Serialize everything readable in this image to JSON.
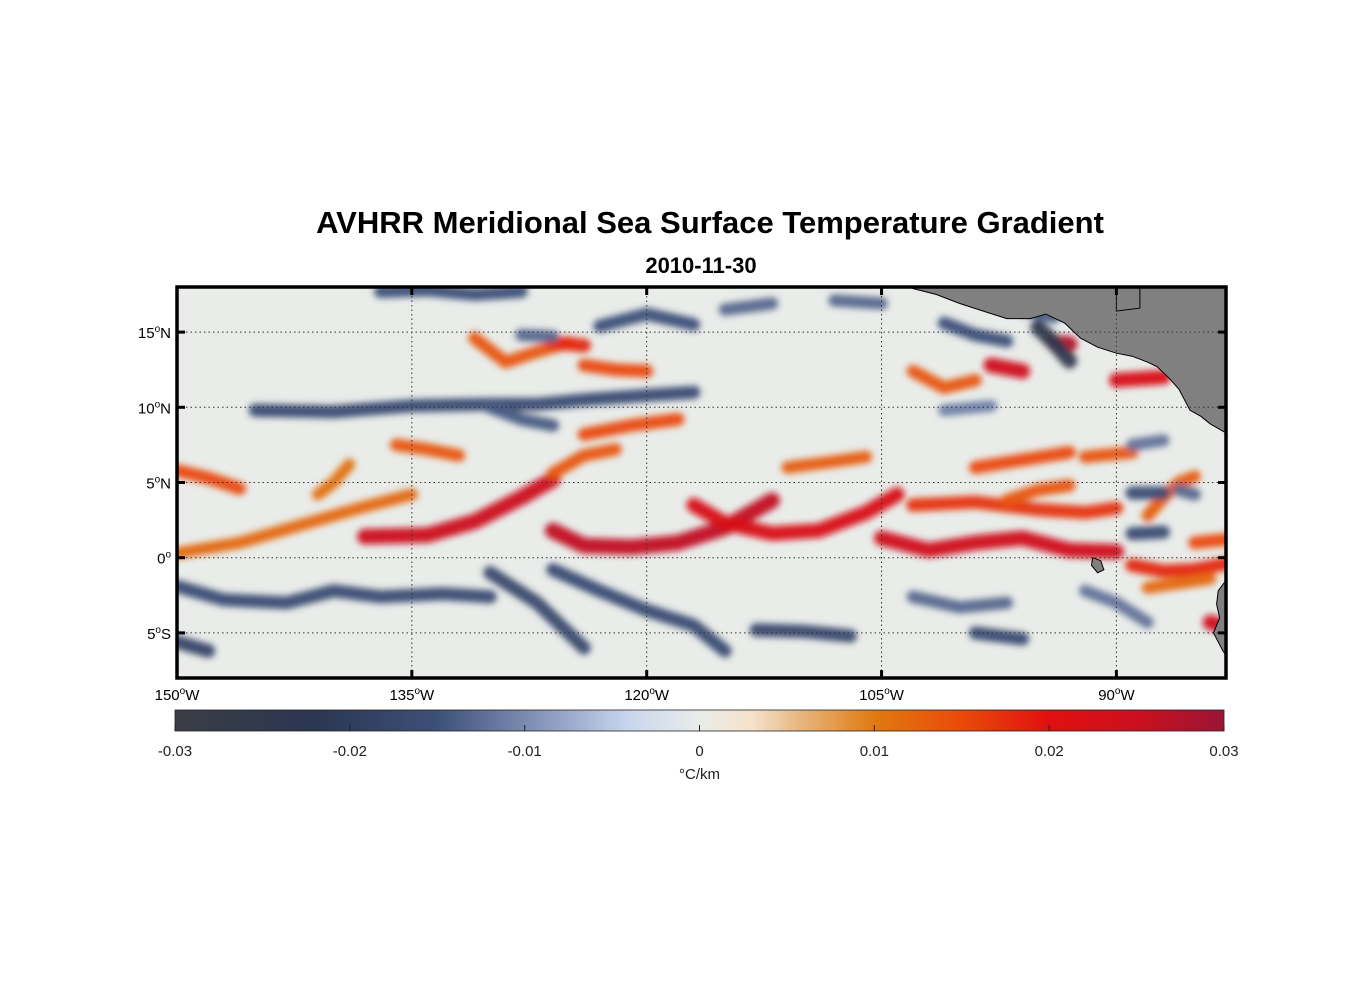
{
  "figure": {
    "title": "AVHRR Meridional Sea Surface Temperature Gradient",
    "subtitle": "2010-11-30"
  },
  "map": {
    "type": "heatmap",
    "lon_range": [
      -150,
      -83
    ],
    "lat_range": [
      -8,
      18
    ],
    "lat_ticks": [
      {
        "value": 15,
        "deg": "15",
        "hemi": "N"
      },
      {
        "value": 10,
        "deg": "10",
        "hemi": "N"
      },
      {
        "value": 5,
        "deg": "5",
        "hemi": "N"
      },
      {
        "value": 0,
        "deg": "0",
        "hemi": ""
      },
      {
        "value": -5,
        "deg": "5",
        "hemi": "S"
      }
    ],
    "lon_ticks": [
      {
        "value": -150,
        "deg": "150",
        "hemi": "W"
      },
      {
        "value": -135,
        "deg": "135",
        "hemi": "W"
      },
      {
        "value": -120,
        "deg": "120",
        "hemi": "W"
      },
      {
        "value": -105,
        "deg": "105",
        "hemi": "W"
      },
      {
        "value": -90,
        "deg": "90",
        "hemi": "W"
      }
    ],
    "grid": "dotted",
    "land_color": "#808080",
    "background_color": "#e9ece9"
  },
  "chart_data": {
    "type": "heatmap",
    "title": "AVHRR Meridional Sea Surface Temperature Gradient",
    "subtitle": "2010-11-30",
    "xlabel": "",
    "ylabel": "",
    "xlim": [
      -150,
      -83
    ],
    "ylim": [
      -8,
      18
    ],
    "value_range": [
      -0.03,
      0.03
    ],
    "features": [
      {
        "value": 0.015,
        "path": [
          [
            -150,
            5.8
          ],
          [
            -148,
            5.3
          ],
          [
            -146,
            4.6
          ]
        ]
      },
      {
        "value": 0.012,
        "path": [
          [
            -150,
            0.3
          ],
          [
            -146,
            1.0
          ],
          [
            -142,
            2.2
          ],
          [
            -138,
            3.4
          ],
          [
            -135,
            4.2
          ]
        ]
      },
      {
        "value": 0.011,
        "path": [
          [
            -141,
            4.2
          ],
          [
            -140,
            5.0
          ],
          [
            -139,
            6.2
          ]
        ]
      },
      {
        "value": 0.014,
        "path": [
          [
            -136,
            7.5
          ],
          [
            -134,
            7.2
          ],
          [
            -132,
            6.8
          ]
        ]
      },
      {
        "value": 0.025,
        "path": [
          [
            -138,
            1.4
          ],
          [
            -134,
            1.5
          ],
          [
            -131,
            2.4
          ],
          [
            -128,
            4.0
          ],
          [
            -126,
            5.2
          ]
        ]
      },
      {
        "value": 0.026,
        "path": [
          [
            -126,
            1.8
          ],
          [
            -124,
            0.8
          ],
          [
            -121,
            0.7
          ],
          [
            -118,
            1.0
          ],
          [
            -115,
            2.0
          ],
          [
            -112,
            3.8
          ]
        ]
      },
      {
        "value": 0.014,
        "path": [
          [
            -126,
            5.6
          ],
          [
            -124,
            6.8
          ],
          [
            -122,
            7.2
          ]
        ]
      },
      {
        "value": 0.015,
        "path": [
          [
            -124,
            8.2
          ],
          [
            -121,
            8.8
          ],
          [
            -118,
            9.2
          ]
        ]
      },
      {
        "value": 0.022,
        "path": [
          [
            -117,
            3.5
          ],
          [
            -115,
            2.3
          ],
          [
            -112,
            1.6
          ],
          [
            -109,
            1.8
          ],
          [
            -106,
            3.0
          ],
          [
            -104,
            4.2
          ]
        ]
      },
      {
        "value": 0.013,
        "path": [
          [
            -111,
            6.0
          ],
          [
            -108,
            6.4
          ],
          [
            -106,
            6.7
          ]
        ]
      },
      {
        "value": 0.024,
        "path": [
          [
            -105,
            1.3
          ],
          [
            -102,
            0.5
          ],
          [
            -99,
            1.0
          ],
          [
            -96,
            1.3
          ],
          [
            -93,
            0.5
          ],
          [
            -90,
            0.4
          ]
        ]
      },
      {
        "value": 0.017,
        "path": [
          [
            -103,
            3.5
          ],
          [
            -99,
            3.7
          ],
          [
            -95,
            3.2
          ],
          [
            -92,
            3.0
          ],
          [
            -90,
            3.3
          ]
        ]
      },
      {
        "value": 0.015,
        "path": [
          [
            -99,
            6.0
          ],
          [
            -96,
            6.5
          ],
          [
            -93,
            7.0
          ]
        ]
      },
      {
        "value": 0.014,
        "path": [
          [
            -131,
            14.6
          ],
          [
            -129,
            13.0
          ],
          [
            -127,
            13.7
          ],
          [
            -125,
            14.3
          ]
        ]
      },
      {
        "value": 0.018,
        "path": [
          [
            -126,
            14.3
          ],
          [
            -124,
            14.1
          ]
        ]
      },
      {
        "value": 0.015,
        "path": [
          [
            -124,
            12.8
          ],
          [
            -122,
            12.5
          ],
          [
            -120,
            12.4
          ]
        ]
      },
      {
        "value": 0.014,
        "path": [
          [
            -103,
            12.4
          ],
          [
            -101,
            11.3
          ],
          [
            -99,
            11.8
          ]
        ]
      },
      {
        "value": 0.024,
        "path": [
          [
            -98,
            12.8
          ],
          [
            -96,
            12.4
          ]
        ]
      },
      {
        "value": 0.027,
        "path": [
          [
            -94,
            14.3
          ],
          [
            -93,
            14.2
          ]
        ]
      },
      {
        "value": 0.029,
        "path": [
          [
            -92,
            15.8
          ],
          [
            -91,
            15.7
          ]
        ]
      },
      {
        "value": 0.022,
        "path": [
          [
            -90,
            11.8
          ],
          [
            -87,
            12.0
          ]
        ]
      },
      {
        "value": 0.014,
        "path": [
          [
            -92,
            6.7
          ],
          [
            -89,
            7.0
          ]
        ]
      },
      {
        "value": 0.018,
        "path": [
          [
            -89,
            -0.5
          ],
          [
            -87,
            -0.9
          ],
          [
            -85,
            -0.8
          ],
          [
            -83,
            -0.4
          ]
        ]
      },
      {
        "value": 0.012,
        "path": [
          [
            -88,
            -2.0
          ],
          [
            -86,
            -1.7
          ],
          [
            -84,
            -1.4
          ]
        ]
      },
      {
        "value": 0.015,
        "path": [
          [
            -85,
            1.0
          ],
          [
            -83,
            1.2
          ]
        ]
      },
      {
        "value": 0.024,
        "path": [
          [
            -84,
            -4.3
          ],
          [
            -83,
            -4.6
          ]
        ]
      },
      {
        "value": 0.013,
        "path": [
          [
            -88,
            2.8
          ],
          [
            -87,
            4.0
          ],
          [
            -86,
            5.0
          ],
          [
            -85,
            5.4
          ]
        ]
      },
      {
        "value": 0.014,
        "path": [
          [
            -97,
            3.8
          ],
          [
            -95,
            4.5
          ],
          [
            -93,
            4.8
          ]
        ]
      },
      {
        "value": -0.016,
        "path": [
          [
            -150,
            -1.9
          ],
          [
            -147,
            -2.8
          ],
          [
            -143,
            -3.0
          ],
          [
            -140,
            -2.2
          ],
          [
            -137,
            -2.6
          ],
          [
            -133,
            -2.4
          ],
          [
            -130,
            -2.6
          ]
        ]
      },
      {
        "value": -0.018,
        "path": [
          [
            -150,
            -5.6
          ],
          [
            -148,
            -6.2
          ]
        ]
      },
      {
        "value": -0.016,
        "path": [
          [
            -126,
            -0.8
          ],
          [
            -123,
            -2.2
          ],
          [
            -120,
            -3.5
          ],
          [
            -117,
            -4.5
          ],
          [
            -115,
            -6.2
          ]
        ]
      },
      {
        "value": -0.017,
        "path": [
          [
            -130,
            -1.0
          ],
          [
            -127,
            -3.0
          ],
          [
            -125,
            -5.0
          ],
          [
            -124,
            -6.0
          ]
        ]
      },
      {
        "value": -0.017,
        "path": [
          [
            -113,
            -4.8
          ],
          [
            -110,
            -4.9
          ],
          [
            -107,
            -5.2
          ]
        ]
      },
      {
        "value": -0.013,
        "path": [
          [
            -103,
            -2.6
          ],
          [
            -100,
            -3.3
          ],
          [
            -97,
            -3.0
          ]
        ]
      },
      {
        "value": -0.016,
        "path": [
          [
            -99,
            -5.0
          ],
          [
            -96,
            -5.4
          ]
        ]
      },
      {
        "value": -0.012,
        "path": [
          [
            -92,
            -2.2
          ],
          [
            -90,
            -3.0
          ],
          [
            -88,
            -4.3
          ]
        ]
      },
      {
        "value": -0.016,
        "path": [
          [
            -145,
            9.8
          ],
          [
            -140,
            9.7
          ],
          [
            -135,
            10.1
          ],
          [
            -130,
            10.2
          ],
          [
            -127,
            10.2
          ],
          [
            -124,
            10.5
          ],
          [
            -120,
            10.8
          ],
          [
            -117,
            11.0
          ]
        ]
      },
      {
        "value": -0.014,
        "path": [
          [
            -130,
            10.0
          ],
          [
            -128,
            9.2
          ],
          [
            -126,
            8.8
          ]
        ]
      },
      {
        "value": -0.015,
        "path": [
          [
            -137,
            17.7
          ],
          [
            -134,
            17.8
          ],
          [
            -131,
            17.5
          ],
          [
            -128,
            17.7
          ]
        ]
      },
      {
        "value": -0.013,
        "path": [
          [
            -128,
            14.8
          ],
          [
            -126,
            14.7
          ]
        ]
      },
      {
        "value": -0.015,
        "path": [
          [
            -123,
            15.4
          ],
          [
            -120,
            16.2
          ],
          [
            -117,
            15.5
          ]
        ]
      },
      {
        "value": -0.013,
        "path": [
          [
            -115,
            16.5
          ],
          [
            -112,
            16.9
          ]
        ]
      },
      {
        "value": -0.013,
        "path": [
          [
            -108,
            17.1
          ],
          [
            -105,
            16.9
          ]
        ]
      },
      {
        "value": -0.015,
        "path": [
          [
            -101,
            15.6
          ],
          [
            -99,
            14.8
          ],
          [
            -97,
            14.4
          ]
        ]
      },
      {
        "value": -0.025,
        "path": [
          [
            -95,
            15.3
          ],
          [
            -94,
            14.3
          ],
          [
            -93,
            13.1
          ]
        ]
      },
      {
        "value": -0.014,
        "path": [
          [
            -96,
            16.5
          ],
          [
            -94,
            16.0
          ]
        ]
      },
      {
        "value": -0.016,
        "path": [
          [
            -89,
            4.3
          ],
          [
            -87,
            4.3
          ]
        ]
      },
      {
        "value": -0.016,
        "path": [
          [
            -89,
            1.6
          ],
          [
            -87,
            1.7
          ]
        ]
      },
      {
        "value": -0.013,
        "path": [
          [
            -86,
            4.5
          ],
          [
            -85,
            4.2
          ]
        ]
      },
      {
        "value": -0.012,
        "path": [
          [
            -89,
            7.5
          ],
          [
            -87,
            7.8
          ]
        ]
      },
      {
        "value": -0.011,
        "path": [
          [
            -101,
            9.8
          ],
          [
            -98,
            10.1
          ]
        ]
      }
    ]
  },
  "colorbar": {
    "label": "°C/km",
    "ticks": [
      "-0.03",
      "-0.02",
      "-0.01",
      "0",
      "0.01",
      "0.02",
      "0.03"
    ],
    "range": [
      -0.03,
      0.03
    ],
    "stops": [
      {
        "v": -0.03,
        "c": "#3a3d44"
      },
      {
        "v": -0.022,
        "c": "#2b3652"
      },
      {
        "v": -0.015,
        "c": "#3d5078"
      },
      {
        "v": -0.009,
        "c": "#8796bb"
      },
      {
        "v": -0.004,
        "c": "#c9d7ef"
      },
      {
        "v": 0.0,
        "c": "#e9ece9"
      },
      {
        "v": 0.003,
        "c": "#f6e2cc"
      },
      {
        "v": 0.006,
        "c": "#e6b37a"
      },
      {
        "v": 0.01,
        "c": "#e07a10"
      },
      {
        "v": 0.015,
        "c": "#ea4a0a"
      },
      {
        "v": 0.02,
        "c": "#e01010"
      },
      {
        "v": 0.025,
        "c": "#cc0f1f"
      },
      {
        "v": 0.03,
        "c": "#9a1535"
      }
    ]
  }
}
